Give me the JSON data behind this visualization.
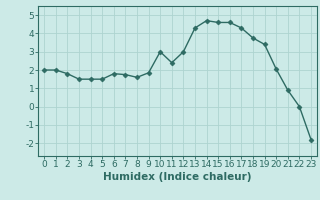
{
  "x": [
    0,
    1,
    2,
    3,
    4,
    5,
    6,
    7,
    8,
    9,
    10,
    11,
    12,
    13,
    14,
    15,
    16,
    17,
    18,
    19,
    20,
    21,
    22,
    23
  ],
  "y": [
    2.0,
    2.0,
    1.8,
    1.5,
    1.5,
    1.5,
    1.8,
    1.75,
    1.6,
    1.85,
    3.0,
    2.4,
    3.0,
    4.3,
    4.7,
    4.6,
    4.6,
    4.3,
    3.75,
    3.4,
    2.05,
    0.9,
    0.0,
    -1.8
  ],
  "line_color": "#2e6b63",
  "marker": "D",
  "marker_size": 2.5,
  "bg_color": "#cceae7",
  "grid_color": "#aed4d0",
  "xlabel": "Humidex (Indice chaleur)",
  "xlim": [
    -0.5,
    23.5
  ],
  "ylim": [
    -2.7,
    5.5
  ],
  "yticks": [
    -2,
    -1,
    0,
    1,
    2,
    3,
    4,
    5
  ],
  "xticks": [
    0,
    1,
    2,
    3,
    4,
    5,
    6,
    7,
    8,
    9,
    10,
    11,
    12,
    13,
    14,
    15,
    16,
    17,
    18,
    19,
    20,
    21,
    22,
    23
  ],
  "tick_fontsize": 6.5,
  "xlabel_fontsize": 7.5
}
